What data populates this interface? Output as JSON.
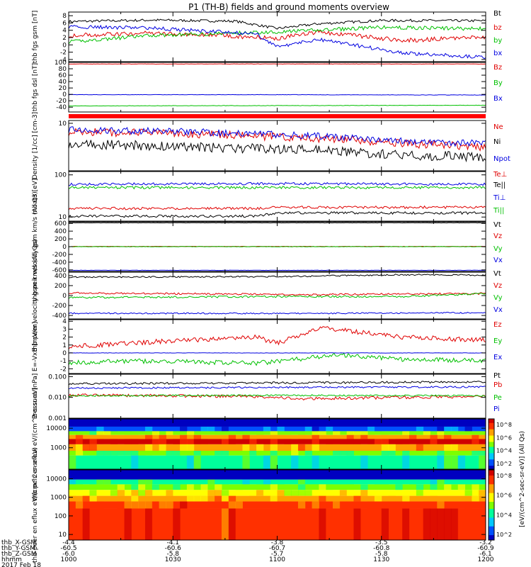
{
  "figure": {
    "title": "P1 (TH-B) fields and ground moments overview",
    "footer": {
      "row_labels": [
        "thb_X-GSM",
        "thb_Y-GSM",
        "thb_Z-GSM",
        "hhmm",
        "2017 Feb 18"
      ],
      "columns": [
        [
          "-4.4",
          "-60.5",
          "-6.0",
          "1000"
        ],
        [
          "-4.1",
          "-60.6",
          "-5.8",
          "1030"
        ],
        [
          "-3.8",
          "-60.7",
          "-5.7",
          "1100"
        ],
        [
          "-3.5",
          "-60.8",
          "-5.8",
          "1130"
        ],
        [
          "-3.2",
          "-60.9",
          "-6.1",
          "1200"
        ]
      ]
    },
    "colorbar": {
      "unit_label": "[eV/(cm^2-sec-sr-eV)] (All Qs)",
      "top_ticks": [
        "10^8",
        "10^6",
        "10^4",
        "10^2"
      ],
      "bottom_ticks": [
        "10^8",
        "10^6",
        "10^4",
        "10^2"
      ],
      "colors": [
        "#0000c0",
        "#0050ff",
        "#00c8ff",
        "#00ff9c",
        "#7cff00",
        "#ffff00",
        "#ffa000",
        "#ff3000",
        "#d00000"
      ]
    }
  },
  "chart_data": [
    {
      "type": "line",
      "id": "fgs_gsm",
      "ylabel": "thb fgs gsm [nT]",
      "ylim": [
        -4.6,
        9
      ],
      "ticks": [
        "8",
        "6",
        "4",
        "2",
        "0",
        "-2",
        "-4"
      ],
      "series": [
        {
          "name": "Bt",
          "color": "#000000",
          "points": [
            [
              0,
              6.4
            ],
            [
              0.2,
              6.8
            ],
            [
              0.4,
              6.5
            ],
            [
              0.5,
              4.5
            ],
            [
              0.6,
              5.8
            ],
            [
              0.75,
              6.7
            ],
            [
              1,
              6.6
            ]
          ],
          "noise": 0.35
        },
        {
          "name": "bz",
          "color": "#e00000",
          "points": [
            [
              0,
              2.6
            ],
            [
              0.2,
              3.2
            ],
            [
              0.35,
              2.6
            ],
            [
              0.5,
              1.8
            ],
            [
              0.6,
              3.6
            ],
            [
              0.8,
              1.2
            ],
            [
              1,
              2.2
            ]
          ],
          "noise": 0.6
        },
        {
          "name": "by",
          "color": "#00c000",
          "points": [
            [
              0,
              0.8
            ],
            [
              0.2,
              2.6
            ],
            [
              0.45,
              3.4
            ],
            [
              0.55,
              3.8
            ],
            [
              0.75,
              4.8
            ],
            [
              1,
              4.4
            ]
          ],
          "noise": 0.5
        },
        {
          "name": "bx",
          "color": "#0000e0",
          "points": [
            [
              0,
              5.0
            ],
            [
              0.2,
              4.6
            ],
            [
              0.45,
              3.0
            ],
            [
              0.5,
              -0.5
            ],
            [
              0.6,
              1.5
            ],
            [
              0.8,
              -2.2
            ],
            [
              1,
              -3.4
            ]
          ],
          "noise": 0.5
        }
      ]
    },
    {
      "type": "line",
      "id": "fgs_dsl",
      "ylabel": "thb fgs dsl [nT]",
      "ylim": [
        -55,
        100
      ],
      "ticks": [
        "100",
        "80",
        "60",
        "40",
        "20",
        "0",
        "-20",
        "-40"
      ],
      "series": [
        {
          "name": "Bz",
          "color": "#e00000",
          "points": [
            [
              0,
              95
            ],
            [
              1,
              95
            ]
          ],
          "noise": 0.5
        },
        {
          "name": "By",
          "color": "#00c000",
          "points": [
            [
              0,
              -36
            ],
            [
              0.5,
              -35
            ],
            [
              1,
              -34
            ]
          ],
          "noise": 0.6
        },
        {
          "name": "Bx",
          "color": "#0000e0",
          "points": [
            [
              0,
              -1
            ],
            [
              0.5,
              -1
            ],
            [
              1,
              -2
            ]
          ],
          "noise": 0.6
        }
      ]
    },
    {
      "type": "line",
      "id": "density",
      "yscale": "log",
      "ylabel": "Density [1/cc] [cm-3]",
      "ylim": [
        2,
        11
      ],
      "ticks": [
        "10"
      ],
      "series": [
        {
          "name": "Ne",
          "color": "#e00000",
          "points": [
            [
              0,
              7.5
            ],
            [
              0.3,
              7.0
            ],
            [
              0.6,
              6.0
            ],
            [
              0.8,
              5.0
            ],
            [
              1,
              4.5
            ]
          ],
          "noise": 0.06
        },
        {
          "name": "Ni",
          "color": "#000000",
          "points": [
            [
              0,
              5.0
            ],
            [
              0.3,
              4.5
            ],
            [
              0.6,
              4.0
            ],
            [
              0.8,
              3.4
            ],
            [
              1,
              3.2
            ]
          ],
          "noise": 0.07
        },
        {
          "name": "Npot",
          "color": "#0000e0",
          "points": [
            [
              0,
              8.0
            ],
            [
              0.3,
              7.5
            ],
            [
              0.6,
              6.5
            ],
            [
              0.8,
              5.5
            ],
            [
              1,
              5.0
            ]
          ],
          "noise": 0.05
        }
      ]
    },
    {
      "type": "line",
      "id": "temperature",
      "yscale": "log",
      "ylabel": "moat3 [eV]",
      "ylim": [
        8,
        120
      ],
      "ticks": [
        "100",
        "10"
      ],
      "series": [
        {
          "name": "Te⊥",
          "color": "#e00000",
          "points": [
            [
              0,
              16
            ],
            [
              0.45,
              16
            ],
            [
              0.5,
              17
            ],
            [
              1,
              17
            ]
          ],
          "noise": 0.03
        },
        {
          "name": "Te||",
          "color": "#000000",
          "points": [
            [
              0,
              10.5
            ],
            [
              0.45,
              10.5
            ],
            [
              0.5,
              12.5
            ],
            [
              1,
              12.5
            ]
          ],
          "noise": 0.03
        },
        {
          "name": "Ti⊥",
          "color": "#0000e0",
          "points": [
            [
              0,
              60
            ],
            [
              0.5,
              62
            ],
            [
              1,
              60
            ]
          ],
          "noise": 0.03
        },
        {
          "name": "Ti||",
          "color": "#00c000",
          "points": [
            [
              0,
              50
            ],
            [
              0.5,
              50
            ],
            [
              1,
              50
            ]
          ],
          "noise": 0.03
        }
      ]
    },
    {
      "type": "line",
      "id": "peir_velocity",
      "ylabel": "thb peir velocity gsm km/s (All Qs)",
      "ylim": [
        -640,
        640
      ],
      "ticks": [
        "600",
        "400",
        "200",
        "0",
        "-200",
        "-400",
        "-600"
      ],
      "series": [
        {
          "name": "Vt",
          "color": "#000000",
          "points": [
            [
              0,
              615
            ],
            [
              1,
              615
            ]
          ],
          "noise": 4
        },
        {
          "name": "Vz",
          "color": "#e00000",
          "points": [
            [
              0,
              5
            ],
            [
              1,
              5
            ]
          ],
          "noise": 5
        },
        {
          "name": "Vy",
          "color": "#00c000",
          "points": [
            [
              0,
              0
            ],
            [
              1,
              0
            ]
          ],
          "noise": 5
        },
        {
          "name": "Vx",
          "color": "#0000e0",
          "points": [
            [
              0,
              -610
            ],
            [
              1,
              -610
            ]
          ],
          "noise": 4
        }
      ]
    },
    {
      "type": "line",
      "id": "peer_velocity",
      "ylabel": "thb peer velocity gsm km/s (All Qs)",
      "ylim": [
        -470,
        470
      ],
      "ticks": [
        "400",
        "200",
        "0",
        "-200",
        "-400"
      ],
      "series": [
        {
          "name": "Vt",
          "color": "#000000",
          "points": [
            [
              0,
              370
            ],
            [
              0.5,
              380
            ],
            [
              0.8,
              420
            ],
            [
              1,
              410
            ]
          ],
          "noise": 14
        },
        {
          "name": "Vz",
          "color": "#e00000",
          "points": [
            [
              0,
              50
            ],
            [
              0.6,
              20
            ],
            [
              1,
              40
            ]
          ],
          "noise": 18
        },
        {
          "name": "Vy",
          "color": "#00c000",
          "points": [
            [
              0,
              -40
            ],
            [
              0.5,
              -20
            ],
            [
              0.8,
              -20
            ],
            [
              1,
              40
            ]
          ],
          "noise": 18
        },
        {
          "name": "Vx",
          "color": "#0000e0",
          "points": [
            [
              0,
              -355
            ],
            [
              0.5,
              -360
            ],
            [
              1,
              -345
            ]
          ],
          "noise": 14
        }
      ]
    },
    {
      "type": "line",
      "id": "efield",
      "ylabel": "E=-VxB [mV/m]",
      "ylim": [
        -2.6,
        4.2
      ],
      "ticks": [
        "4",
        "3",
        "2",
        "1",
        "0",
        "-1",
        "-2"
      ],
      "series": [
        {
          "name": "Ez",
          "color": "#e00000",
          "points": [
            [
              0,
              0.8
            ],
            [
              0.2,
              1.4
            ],
            [
              0.45,
              2.0
            ],
            [
              0.5,
              1.2
            ],
            [
              0.6,
              3.2
            ],
            [
              0.8,
              2.0
            ],
            [
              1,
              1.6
            ]
          ],
          "noise": 0.3
        },
        {
          "name": "Ey",
          "color": "#00c000",
          "points": [
            [
              0,
              -1.2
            ],
            [
              0.2,
              -1.0
            ],
            [
              0.45,
              -1.3
            ],
            [
              0.55,
              -0.8
            ],
            [
              0.65,
              -0.2
            ],
            [
              0.8,
              -0.8
            ],
            [
              1,
              -1.0
            ]
          ],
          "noise": 0.3
        },
        {
          "name": "Ex",
          "color": "#0000e0",
          "points": [
            [
              0,
              0
            ],
            [
              1,
              0
            ]
          ],
          "noise": 0.02
        }
      ]
    },
    {
      "type": "line",
      "id": "pressure",
      "yscale": "log",
      "ylabel": "Pressure [nPa]",
      "ylim": [
        0.001,
        0.13
      ],
      "ticks": [
        "0.100",
        "0.010",
        "0.001"
      ],
      "series": [
        {
          "name": "Pt",
          "color": "#000000",
          "points": [
            [
              0,
              0.045
            ],
            [
              0.5,
              0.05
            ],
            [
              1,
              0.055
            ]
          ],
          "noise": 0.05
        },
        {
          "name": "Pb",
          "color": "#e00000",
          "points": [
            [
              0,
              0.013
            ],
            [
              0.45,
              0.011
            ],
            [
              0.55,
              0.0085
            ],
            [
              1,
              0.011
            ]
          ],
          "noise": 0.07
        },
        {
          "name": "Pe",
          "color": "#00c000",
          "points": [
            [
              0,
              0.012
            ],
            [
              0.5,
              0.0125
            ],
            [
              1,
              0.012
            ]
          ],
          "noise": 0.04
        },
        {
          "name": "Pi",
          "color": "#0000e0",
          "points": [
            [
              0,
              0.028
            ],
            [
              0.5,
              0.03
            ],
            [
              1,
              0.032
            ]
          ],
          "noise": 0.04
        }
      ]
    },
    {
      "type": "heatmap",
      "id": "peir_spectrogram",
      "ylabel": "thb peir en eflux eV/(cm^2-s-sr-eV)",
      "ticks": [
        "10000",
        "1000"
      ],
      "yscale": "log",
      "ylim": [
        80,
        30000
      ],
      "bands": [
        {
          "from": 30000,
          "to": 12000,
          "level": 0.0
        },
        {
          "from": 12000,
          "to": 7000,
          "level": 0.15
        },
        {
          "from": 7000,
          "to": 4500,
          "level": 0.55
        },
        {
          "from": 4500,
          "to": 2800,
          "level": 0.8
        },
        {
          "from": 2800,
          "to": 1500,
          "level": 0.95
        },
        {
          "from": 1500,
          "to": 700,
          "level": 0.7
        },
        {
          "from": 700,
          "to": 400,
          "level": 0.45
        },
        {
          "from": 400,
          "to": 80,
          "level": 0.35
        }
      ]
    },
    {
      "type": "heatmap",
      "id": "peer_spectrogram",
      "ylabel": "thb peer en eflux eV/(cm^2-s-sr-eV)",
      "ticks": [
        "10000",
        "1000",
        "100",
        "10"
      ],
      "yscale": "log",
      "ylim": [
        5,
        30000
      ],
      "bands": [
        {
          "from": 30000,
          "to": 9000,
          "level": 0.0
        },
        {
          "from": 9000,
          "to": 5000,
          "level": 0.38
        },
        {
          "from": 5000,
          "to": 2500,
          "level": 0.5
        },
        {
          "from": 2500,
          "to": 1200,
          "level": 0.62
        },
        {
          "from": 1200,
          "to": 600,
          "level": 0.72
        },
        {
          "from": 600,
          "to": 250,
          "level": 0.82
        },
        {
          "from": 250,
          "to": 5,
          "level": 0.93
        }
      ]
    }
  ]
}
